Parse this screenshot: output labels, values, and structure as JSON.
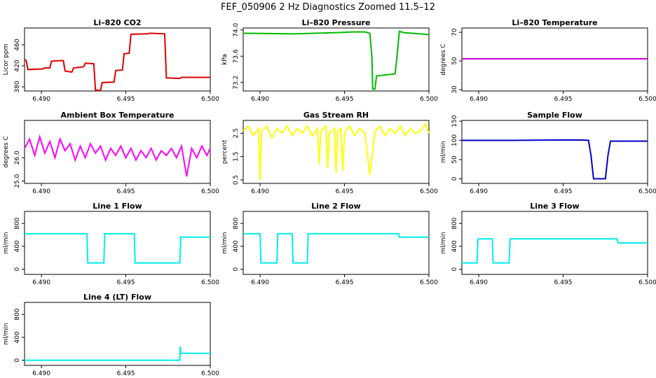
{
  "figure_title": "FEF_050906  2 Hz Diagnostics Zoomed 11.5–12",
  "chart_data": [
    {
      "type": "line",
      "title": "Li–820 CO2",
      "ylabel": "Licor ppm",
      "color": "#dd0000",
      "xlim": [
        6.489,
        6.5
      ],
      "ylim": [
        372,
        492
      ],
      "xticks": [
        6.49,
        6.495,
        6.5
      ],
      "xtick_labels": [
        "6.490",
        "6.495",
        "6.500"
      ],
      "yticks": [
        380,
        420,
        460
      ],
      "ytick_labels": [
        "380",
        "420",
        "460"
      ],
      "series": [
        {
          "x": [
            6.489,
            6.4891,
            6.4892,
            6.4901,
            6.4902,
            6.4905,
            6.4906,
            6.4913,
            6.4914,
            6.4918,
            6.4919,
            6.4925,
            6.4926,
            6.4931,
            6.4932,
            6.4935,
            6.4936,
            6.4943,
            6.4944,
            6.4948,
            6.4949,
            6.4952,
            6.4953,
            6.4963,
            6.4964,
            6.4973,
            6.4974,
            6.4982,
            6.4983,
            6.5
          ],
          "y": [
            432,
            430,
            413,
            414,
            416,
            416,
            429,
            430,
            410,
            408,
            416,
            418,
            425,
            424,
            374,
            373,
            388,
            389,
            411,
            412,
            443,
            444,
            480,
            481,
            482,
            481,
            397,
            396,
            398,
            398
          ]
        }
      ]
    },
    {
      "type": "line",
      "title": "Li–820 Pressure",
      "ylabel": "kPa",
      "color": "#00bb00",
      "xlim": [
        6.489,
        6.5
      ],
      "ylim": [
        73.07,
        74.03
      ],
      "xticks": [
        6.49,
        6.495,
        6.5
      ],
      "xtick_labels": [
        "6.490",
        "6.495",
        "6.500"
      ],
      "yticks": [
        73.2,
        73.6,
        74.0
      ],
      "ytick_labels": [
        "73.2",
        "73.6",
        "74.0"
      ],
      "series": [
        {
          "x": [
            6.489,
            6.492,
            6.4945,
            6.4955,
            6.4962,
            6.4965,
            6.49662,
            6.49667,
            6.4968,
            6.4969,
            6.4976,
            6.498,
            6.49815,
            6.49825,
            6.4985,
            6.5
          ],
          "y": [
            73.95,
            73.94,
            73.96,
            73.97,
            73.97,
            73.95,
            73.6,
            73.1,
            73.1,
            73.3,
            73.32,
            73.33,
            73.7,
            73.98,
            73.96,
            73.93
          ]
        }
      ]
    },
    {
      "type": "line",
      "title": "Li–820 Temperature",
      "ylabel": "degrees C",
      "color": "#cc00cc",
      "xlim": [
        6.489,
        6.5
      ],
      "ylim": [
        29,
        73
      ],
      "xticks": [
        6.49,
        6.495,
        6.5
      ],
      "xtick_labels": [
        "6.490",
        "6.495",
        "6.500"
      ],
      "yticks": [
        30,
        50,
        70
      ],
      "ytick_labels": [
        "30",
        "50",
        "70"
      ],
      "series": [
        {
          "x": [
            6.489,
            6.5
          ],
          "y": [
            51.5,
            51.5
          ]
        }
      ]
    },
    {
      "type": "line",
      "title": "Ambient Box Temperature",
      "ylabel": "degrees C",
      "color": "#ff00ff",
      "xlim": [
        6.489,
        6.5
      ],
      "ylim": [
        24.9,
        27.6
      ],
      "xticks": [
        6.49,
        6.495,
        6.5
      ],
      "xtick_labels": [
        "6.490",
        "6.495",
        "6.500"
      ],
      "yticks": [
        25.0,
        26.0
      ],
      "ytick_labels": [
        "25.0",
        "26.0"
      ],
      "series": [
        {
          "x": [
            6.489,
            6.4893,
            6.4896,
            6.4899,
            6.4902,
            6.4905,
            6.4908,
            6.4911,
            6.4914,
            6.4917,
            6.492,
            6.4923,
            6.4926,
            6.4929,
            6.4932,
            6.4935,
            6.4938,
            6.4941,
            6.4944,
            6.4947,
            6.495,
            6.4953,
            6.4956,
            6.4959,
            6.4962,
            6.4965,
            6.4968,
            6.4971,
            6.4974,
            6.4977,
            6.498,
            6.4983,
            6.4986,
            6.4989,
            6.4992,
            6.4995,
            6.4998,
            6.5
          ],
          "y": [
            26.4,
            26.8,
            26.1,
            26.9,
            26.2,
            26.7,
            26.0,
            26.8,
            26.3,
            26.6,
            25.9,
            26.5,
            26.0,
            26.6,
            26.2,
            26.5,
            25.9,
            26.4,
            26.1,
            26.5,
            26.0,
            26.4,
            25.9,
            26.3,
            26.0,
            26.4,
            25.9,
            26.3,
            26.1,
            26.4,
            26.0,
            26.5,
            25.2,
            26.4,
            26.0,
            26.5,
            26.1,
            26.4
          ]
        }
      ]
    },
    {
      "type": "line",
      "title": "Gas Stream RH",
      "ylabel": "percent",
      "color": "#ffff00",
      "xlim": [
        6.489,
        6.5
      ],
      "ylim": [
        0.35,
        3.05
      ],
      "xticks": [
        6.49,
        6.495,
        6.5
      ],
      "xtick_labels": [
        "6.490",
        "6.495",
        "6.500"
      ],
      "yticks": [
        0.5,
        1.5,
        2.5
      ],
      "ytick_labels": [
        "0.5",
        "1.5",
        "2.5"
      ],
      "series": [
        {
          "x": [
            6.489,
            6.4893,
            6.4896,
            6.4899,
            6.49,
            6.4901,
            6.4904,
            6.4907,
            6.491,
            6.4913,
            6.4916,
            6.4919,
            6.4922,
            6.4925,
            6.4928,
            6.4931,
            6.4934,
            6.4935,
            6.4936,
            6.4939,
            6.494,
            6.4941,
            6.4944,
            6.4945,
            6.4946,
            6.4948,
            6.4949,
            6.495,
            6.4953,
            6.4956,
            6.4959,
            6.4962,
            6.4965,
            6.4968,
            6.4971,
            6.4974,
            6.4977,
            6.498,
            6.4983,
            6.4986,
            6.4989,
            6.4992,
            6.4995,
            6.4998,
            6.5
          ],
          "y": [
            2.6,
            2.8,
            2.4,
            2.7,
            0.5,
            2.6,
            2.8,
            2.3,
            2.7,
            2.5,
            2.8,
            2.4,
            2.7,
            2.5,
            2.8,
            2.4,
            2.7,
            1.2,
            2.6,
            2.8,
            1.0,
            2.5,
            2.7,
            0.8,
            2.6,
            2.7,
            0.9,
            2.5,
            2.8,
            2.4,
            2.7,
            2.5,
            0.7,
            2.6,
            2.8,
            2.4,
            2.7,
            2.5,
            2.8,
            2.4,
            2.7,
            2.5,
            2.6,
            2.9,
            2.5
          ]
        }
      ]
    },
    {
      "type": "line",
      "title": "Sample Flow",
      "ylabel": "ml/min",
      "color": "#0000cc",
      "xlim": [
        6.489,
        6.5
      ],
      "ylim": [
        -12,
        152
      ],
      "xticks": [
        6.49,
        6.495,
        6.5
      ],
      "xtick_labels": [
        "6.490",
        "6.495",
        "6.500"
      ],
      "yticks": [
        0,
        50,
        100,
        150
      ],
      "ytick_labels": [
        "0",
        "50",
        "100",
        "150"
      ],
      "series": [
        {
          "x": [
            6.489,
            6.492,
            6.495,
            6.496,
            6.4965,
            6.49665,
            6.4968,
            6.4975,
            6.49765,
            6.4978,
            6.5
          ],
          "y": [
            100,
            100,
            101,
            101,
            100,
            60,
            0,
            0,
            60,
            98,
            98
          ]
        }
      ]
    },
    {
      "type": "line",
      "title": "Line 1 Flow",
      "ylabel": "ml/min",
      "color": "#00eeee",
      "xlim": [
        6.489,
        6.5
      ],
      "ylim": [
        -90,
        1010
      ],
      "xticks": [
        6.49,
        6.495,
        6.5
      ],
      "xtick_labels": [
        "6.490",
        "6.495",
        "6.500"
      ],
      "yticks": [
        0,
        400,
        800
      ],
      "ytick_labels": [
        "0",
        "400",
        "800"
      ],
      "series": [
        {
          "x": [
            6.489,
            6.4927,
            6.49275,
            6.4937,
            6.49375,
            6.4955,
            6.49555,
            6.4982,
            6.49825,
            6.5
          ],
          "y": [
            620,
            620,
            110,
            110,
            620,
            620,
            110,
            110,
            560,
            560
          ]
        }
      ]
    },
    {
      "type": "line",
      "title": "Line 2 Flow",
      "ylabel": "ml/min",
      "color": "#00eeee",
      "xlim": [
        6.489,
        6.5
      ],
      "ylim": [
        -90,
        1010
      ],
      "xticks": [
        6.49,
        6.495,
        6.5
      ],
      "xtick_labels": [
        "6.490",
        "6.495",
        "6.500"
      ],
      "yticks": [
        0,
        400,
        800
      ],
      "ytick_labels": [
        "0",
        "400",
        "800"
      ],
      "series": [
        {
          "x": [
            6.489,
            6.49,
            6.49005,
            6.491,
            6.49105,
            6.4919,
            6.49195,
            6.4928,
            6.49285,
            6.4982,
            6.49825,
            6.5
          ],
          "y": [
            620,
            620,
            110,
            110,
            620,
            620,
            110,
            110,
            620,
            620,
            560,
            560
          ]
        }
      ]
    },
    {
      "type": "line",
      "title": "Line 3 Flow",
      "ylabel": "ml/min",
      "color": "#00eeee",
      "xlim": [
        6.489,
        6.5
      ],
      "ylim": [
        -90,
        1010
      ],
      "xticks": [
        6.49,
        6.495,
        6.5
      ],
      "xtick_labels": [
        "6.490",
        "6.495",
        "6.500"
      ],
      "yticks": [
        0,
        400,
        800
      ],
      "ytick_labels": [
        "0",
        "400",
        "800"
      ],
      "series": [
        {
          "x": [
            6.489,
            6.4899,
            6.48995,
            6.4908,
            6.49085,
            6.4918,
            6.49185,
            6.4982,
            6.49825,
            6.5
          ],
          "y": [
            110,
            110,
            530,
            530,
            110,
            110,
            530,
            530,
            460,
            460
          ]
        }
      ]
    },
    {
      "type": "line",
      "title": "Line 4 (LT) Flow",
      "ylabel": "ml/min",
      "color": "#00eeee",
      "xlim": [
        6.489,
        6.5
      ],
      "ylim": [
        -90,
        1010
      ],
      "xticks": [
        6.49,
        6.495,
        6.5
      ],
      "xtick_labels": [
        "6.490",
        "6.495",
        "6.500"
      ],
      "yticks": [
        0,
        400,
        800
      ],
      "ytick_labels": [
        "0",
        "400",
        "800"
      ],
      "series": [
        {
          "x": [
            6.489,
            6.4982,
            6.49822,
            6.49825,
            6.4983,
            6.5
          ],
          "y": [
            0,
            0,
            240,
            130,
            120,
            120
          ]
        }
      ]
    }
  ]
}
